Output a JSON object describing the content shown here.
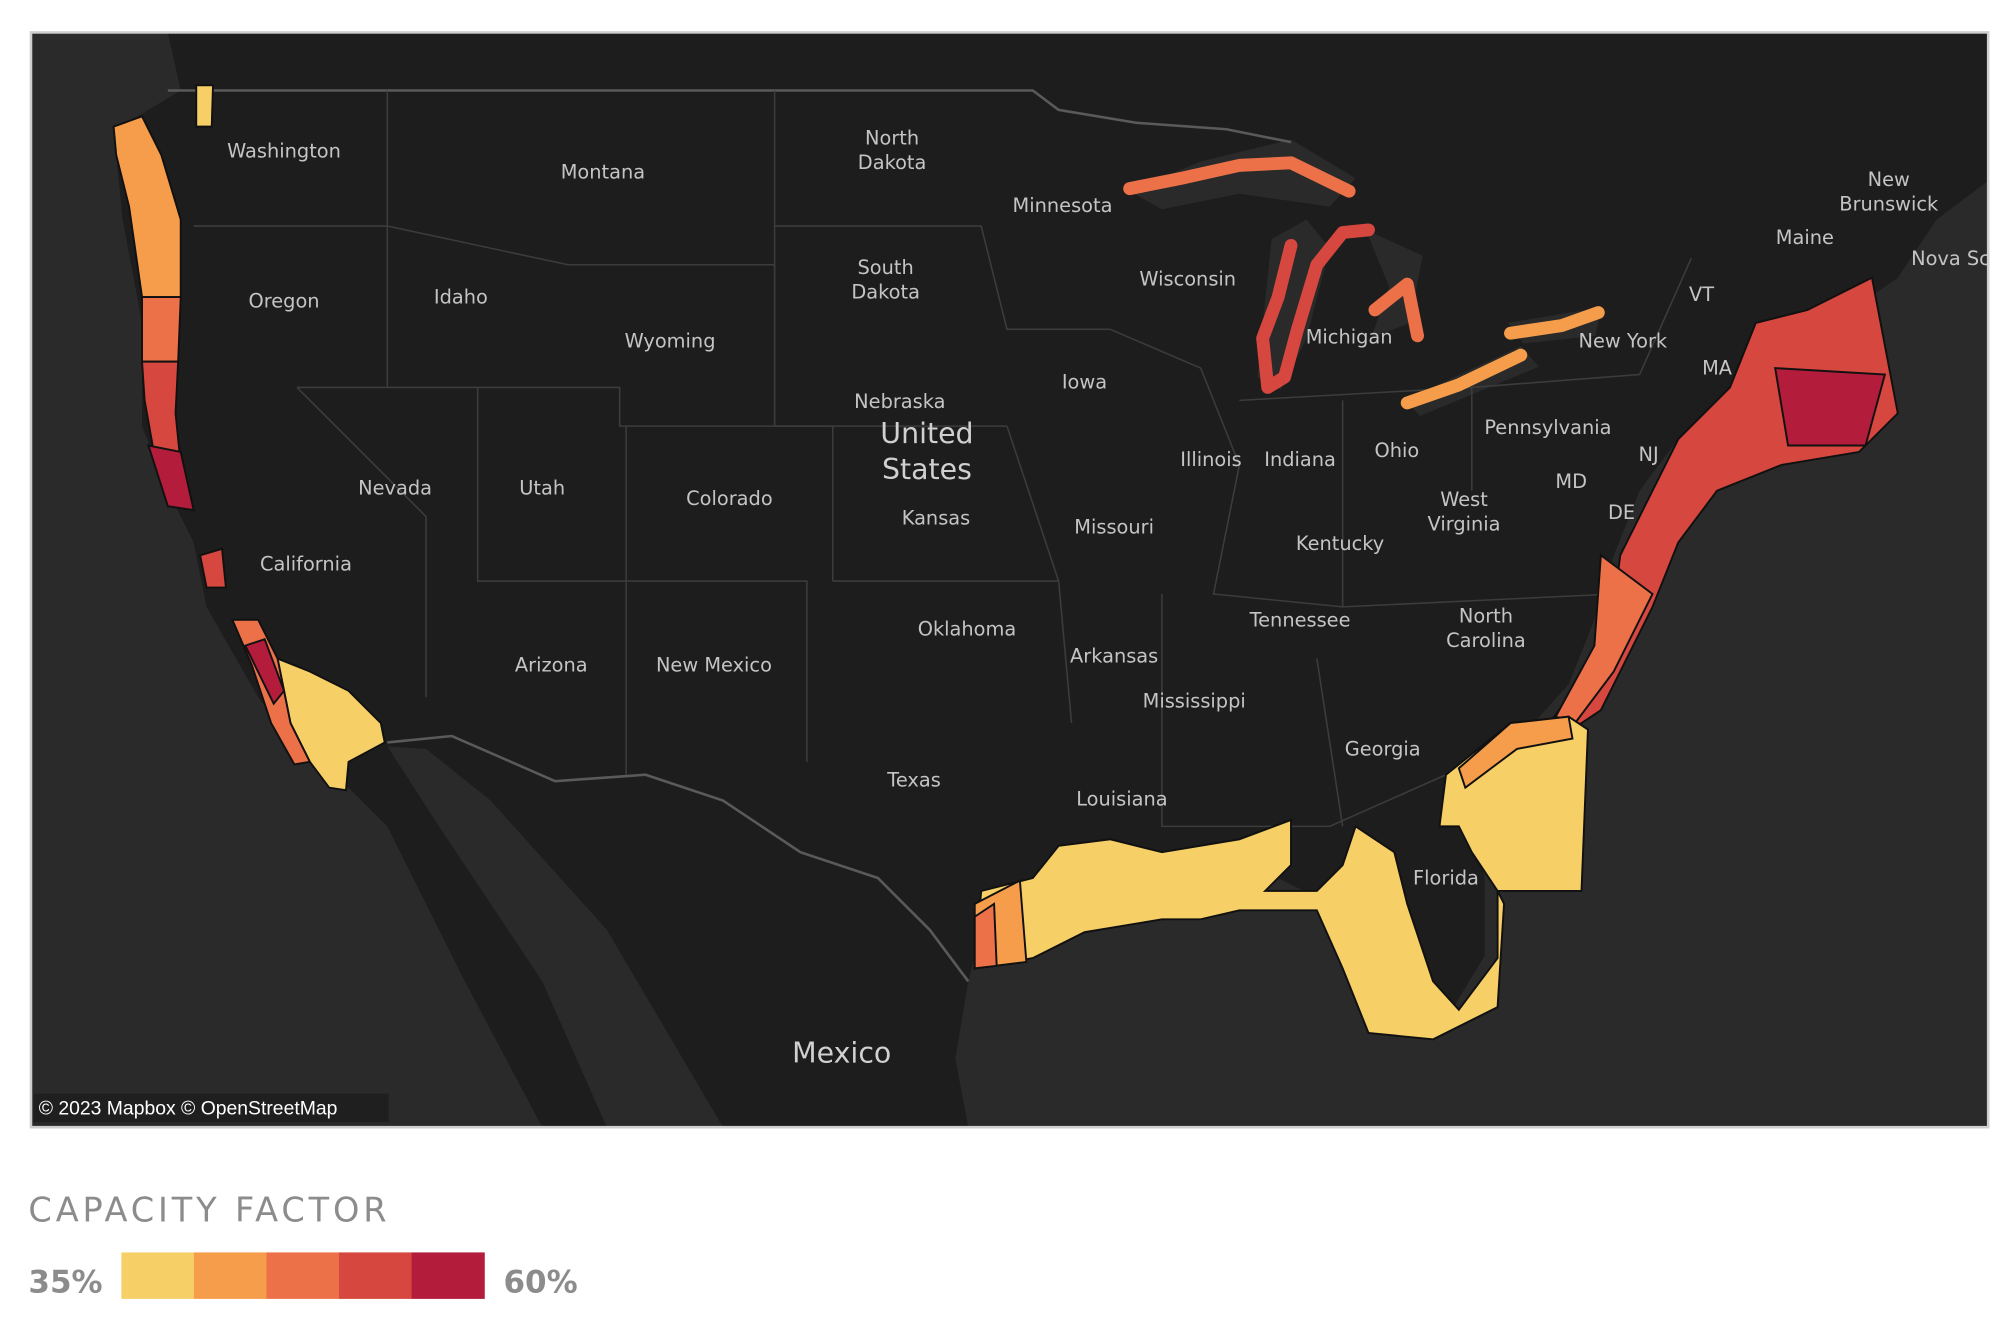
{
  "map": {
    "labels": [
      [
        "Washington"
      ],
      [
        "Montana"
      ],
      [
        "North",
        "Dakota"
      ],
      [
        "Minnesota"
      ],
      [
        "Oregon"
      ],
      [
        "Idaho"
      ],
      [
        "Wyoming"
      ],
      [
        "South",
        "Dakota"
      ],
      [
        "Wisconsin"
      ],
      [
        "Michigan"
      ],
      [
        "New York"
      ],
      [
        "VT"
      ],
      [
        "MA"
      ],
      [
        "Maine"
      ],
      [
        "New",
        "Brunswick"
      ],
      [
        "Nova Scotia"
      ],
      [
        "Nebraska"
      ],
      [
        "United",
        "States"
      ],
      [
        "Iowa"
      ],
      [
        "Pennsylvania"
      ],
      [
        "NJ"
      ],
      [
        "MD"
      ],
      [
        "DE"
      ],
      [
        "Nevada"
      ],
      [
        "Utah"
      ],
      [
        "Colorado"
      ],
      [
        "Kansas"
      ],
      [
        "Illinois"
      ],
      [
        "Indiana"
      ],
      [
        "Ohio"
      ],
      [
        "West",
        "Virginia"
      ],
      [
        "Missouri"
      ],
      [
        "Kentucky"
      ],
      [
        "California"
      ],
      [
        "Tennessee"
      ],
      [
        "North",
        "Carolina"
      ],
      [
        "Oklahoma"
      ],
      [
        "Arkansas"
      ],
      [
        "Arizona"
      ],
      [
        "New Mexico"
      ],
      [
        "Mississippi"
      ],
      [
        "Georgia"
      ],
      [
        "Texas"
      ],
      [
        "Louisiana"
      ],
      [
        "Florida"
      ],
      [
        "Mexico"
      ]
    ],
    "attribution": "© 2023 Mapbox © OpenStreetMap"
  },
  "legend": {
    "title": "CAPACITY FACTOR",
    "min_label": "35%",
    "max_label": "60%",
    "colors": [
      "#f6cf66",
      "#f69d4b",
      "#ec7149",
      "#d6473f",
      "#b31d3b"
    ]
  }
}
